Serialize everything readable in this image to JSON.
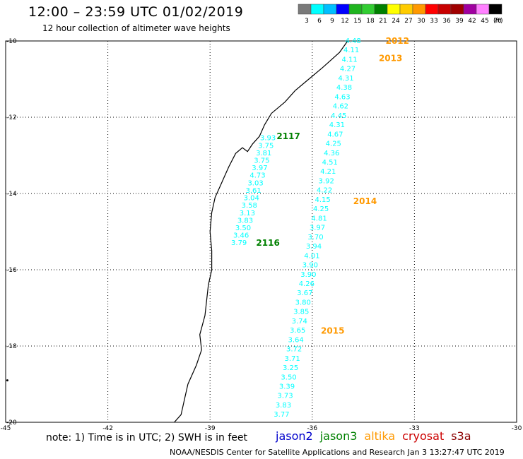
{
  "title": "12:00 – 23:59 UTC 01/02/2019",
  "subtitle": "12 hour collection of altimeter wave heights",
  "note": "note: 1) Time is in UTC; 2) SWH is in feet",
  "credit": "NOAA/NESDIS Center for Satellite Applications and Research    Jan  3 13:27:47 UTC 2019",
  "legend": {
    "unit": "(ft)",
    "bins": [
      {
        "label": "3",
        "color": "#7a7a7a"
      },
      {
        "label": "6",
        "color": "#00ffff"
      },
      {
        "label": "9",
        "color": "#00bfff"
      },
      {
        "label": "12",
        "color": "#0000ff"
      },
      {
        "label": "15",
        "color": "#1fb41f"
      },
      {
        "label": "18",
        "color": "#32cd32"
      },
      {
        "label": "21",
        "color": "#008000"
      },
      {
        "label": "24",
        "color": "#ffff00"
      },
      {
        "label": "27",
        "color": "#ffcc00"
      },
      {
        "label": "30",
        "color": "#ff9900"
      },
      {
        "label": "33",
        "color": "#ff0000"
      },
      {
        "label": "36",
        "color": "#c80000"
      },
      {
        "label": "39",
        "color": "#a00000"
      },
      {
        "label": "42",
        "color": "#a000a0"
      },
      {
        "label": "45",
        "color": "#ff80ff"
      },
      {
        "label": "70",
        "color": "#000000"
      }
    ]
  },
  "satellites": [
    {
      "name": "jason2",
      "color": "#0000cc"
    },
    {
      "name": "jason3",
      "color": "#008000"
    },
    {
      "name": "altika",
      "color": "#ff9900"
    },
    {
      "name": "cryosat",
      "color": "#cc0000"
    },
    {
      "name": "s3a",
      "color": "#8b0000"
    }
  ],
  "map": {
    "lon_range": [
      -45,
      -30
    ],
    "lat_range": [
      -20,
      -10
    ],
    "lon_ticks": [
      "-45",
      "-42",
      "-39",
      "-36",
      "-33",
      "-30"
    ],
    "lat_ticks": [
      "-10",
      "-12",
      "-14",
      "-16",
      "-18",
      "-20"
    ],
    "tracks": [
      {
        "color": "#00ffff",
        "values": [
          "4.48",
          "4.11",
          "4.11",
          "4.27",
          "4.31",
          "4.38",
          "4.63",
          "4.62",
          "4.45",
          "4.31",
          "4.67",
          "4.25",
          "4.36",
          "4.51",
          "4.21",
          "3.92",
          "4.22",
          "4.15",
          "4.25",
          "4.81",
          "3.97",
          "3.70",
          "3.94",
          "4.01",
          "3.90",
          "3.90",
          "4.26",
          "3.67",
          "3.80",
          "3.85",
          "3.74",
          "3.65",
          "3.64",
          "3.72",
          "3.71",
          "3.25",
          "3.50",
          "3.39",
          "3.73",
          "3.83",
          "3.77"
        ],
        "lat_start": -10.0,
        "lat_end": -19.8,
        "lon_start": -34.8,
        "lon_end": -36.9
      },
      {
        "color": "#00ffff",
        "values": [
          "3.93",
          "3.75",
          "3.81",
          "3.75",
          "3.97",
          "4.73",
          "3.03",
          "3.61",
          "3.04",
          "3.58",
          "3.13",
          "3.83",
          "3.50",
          "3.46",
          "3.79"
        ],
        "lat_start": -12.55,
        "lat_end": -15.3,
        "lon_start": -37.3,
        "lon_end": -38.15
      }
    ],
    "pass_labels": [
      {
        "text": "2012",
        "color": "#ff9900",
        "lon": -33.5,
        "lat": -10.0
      },
      {
        "text": "2013",
        "color": "#ff9900",
        "lon": -33.7,
        "lat": -10.45
      },
      {
        "text": "2117",
        "color": "#008000",
        "lon": -36.7,
        "lat": -12.5
      },
      {
        "text": "2014",
        "color": "#ff9900",
        "lon": -34.45,
        "lat": -14.2
      },
      {
        "text": "2116",
        "color": "#008000",
        "lon": -37.3,
        "lat": -15.3
      },
      {
        "text": "2015",
        "color": "#ff9900",
        "lon": -35.4,
        "lat": -17.6
      }
    ]
  }
}
